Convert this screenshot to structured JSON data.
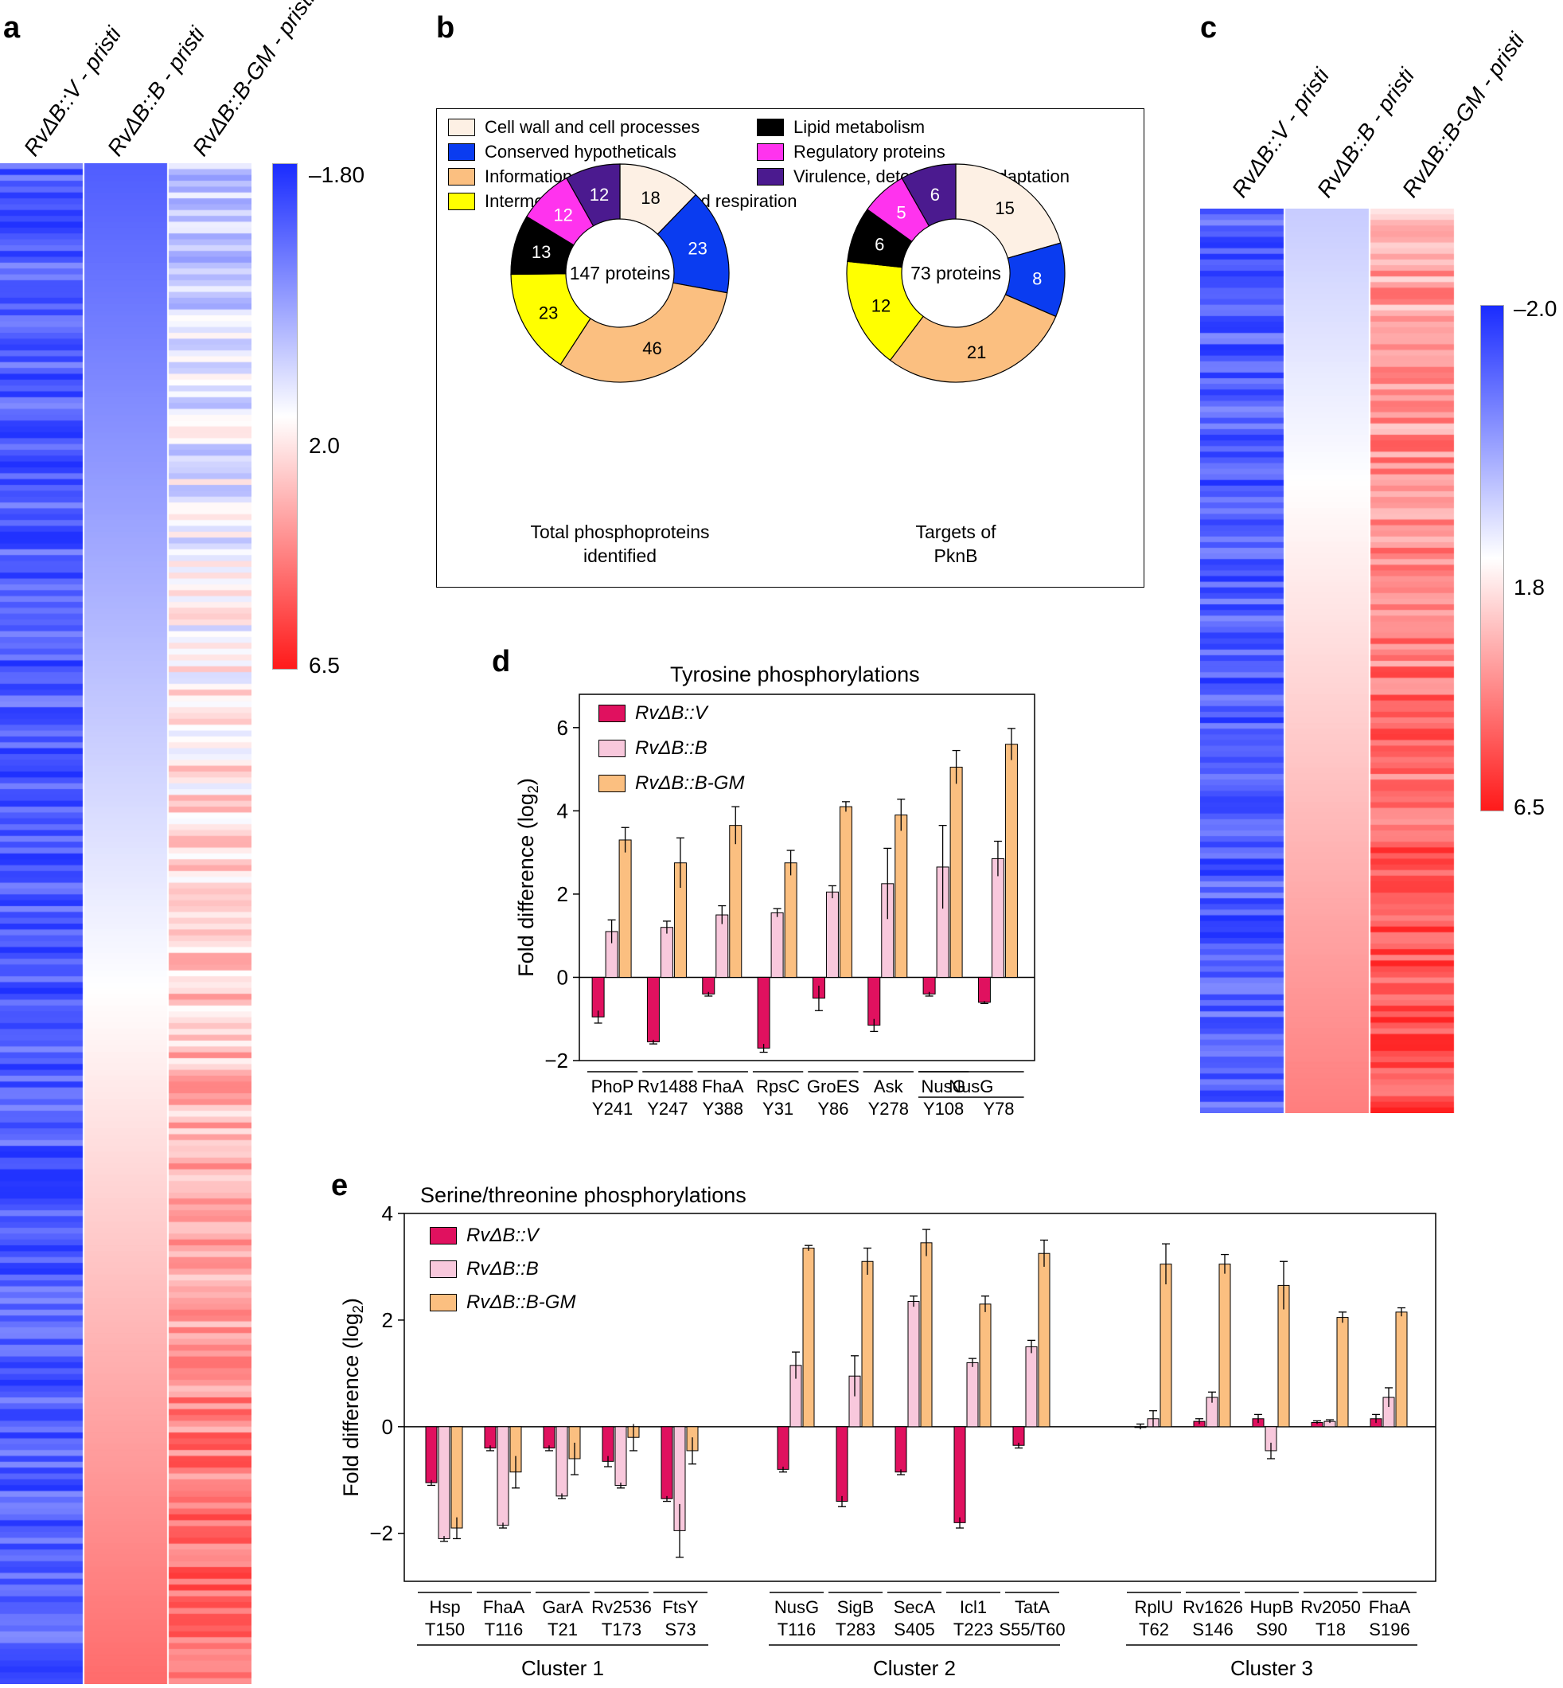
{
  "panel_labels": {
    "a": "a",
    "b": "b",
    "c": "c",
    "d": "d",
    "e": "e"
  },
  "colors": {
    "blue": "#1a2cff",
    "white": "#ffffff",
    "red": "#ff1a1a",
    "rvV": "#e0115f",
    "rvB": "#f8c8dc",
    "rvBGM": "#fbbf80",
    "cat_cell_wall": "#fdf0e4",
    "cat_conserved": "#0a3cf0",
    "cat_info": "#fbbf80",
    "cat_intermediary": "#ffff00",
    "cat_lipid": "#000000",
    "cat_regulatory": "#ff33ee",
    "cat_virulence": "#4b1a8f"
  },
  "chart_data": [
    {
      "panel": "a",
      "type": "heatmap",
      "columns": [
        "RvΔB::V - pristi",
        "RvΔB::B - pristi",
        "RvΔB::B-GM - pristi"
      ],
      "scale": {
        "labels": [
          "–1.80",
          "2.0",
          "6.5"
        ]
      }
    },
    {
      "panel": "b",
      "type": "pie",
      "legend": [
        {
          "key": "cell_wall",
          "label": "Cell wall and cell processes"
        },
        {
          "key": "conserved",
          "label": "Conserved hypotheticals"
        },
        {
          "key": "info",
          "label": "Information pathways"
        },
        {
          "key": "intermediary",
          "label": "Intermediary metabolism and respiration"
        },
        {
          "key": "lipid",
          "label": "Lipid metabolism"
        },
        {
          "key": "regulatory",
          "label": "Regulatory proteins"
        },
        {
          "key": "virulence",
          "label": "Virulence, detoxification, adaptation"
        }
      ],
      "donuts": [
        {
          "center": "147 proteins",
          "caption": [
            "Total phosphoproteins",
            "identified"
          ],
          "slices": [
            {
              "key": "cell_wall",
              "value": 18
            },
            {
              "key": "conserved",
              "value": 23
            },
            {
              "key": "info",
              "value": 46
            },
            {
              "key": "intermediary",
              "value": 23
            },
            {
              "key": "lipid",
              "value": 13
            },
            {
              "key": "regulatory",
              "value": 12
            },
            {
              "key": "virulence",
              "value": 12
            }
          ]
        },
        {
          "center": "73 proteins",
          "caption": [
            "Targets of",
            "PknB"
          ],
          "slices": [
            {
              "key": "cell_wall",
              "value": 15
            },
            {
              "key": "conserved",
              "value": 8
            },
            {
              "key": "info",
              "value": 21
            },
            {
              "key": "intermediary",
              "value": 12
            },
            {
              "key": "lipid",
              "value": 6
            },
            {
              "key": "regulatory",
              "value": 5
            },
            {
              "key": "virulence",
              "value": 6
            }
          ]
        }
      ]
    },
    {
      "panel": "c",
      "type": "heatmap",
      "columns": [
        "RvΔB::V - pristi",
        "RvΔB::B - pristi",
        "RvΔB::B-GM - pristi"
      ],
      "scale": {
        "labels": [
          "–2.0",
          "1.8",
          "6.5"
        ]
      }
    },
    {
      "panel": "d",
      "type": "bar",
      "title": "Tyrosine phosphorylations",
      "ylabel": "Fold difference (log",
      "ylabel_sub": "2",
      "ylabel_end": ")",
      "ylim": [
        -2,
        6.8
      ],
      "yticks": [
        -2,
        0,
        2,
        4,
        6
      ],
      "ytick_labels": [
        "−2",
        "0",
        "2",
        "4",
        "6"
      ],
      "series_names": [
        "RvΔB::V",
        "RvΔB::B",
        "RvΔB::B-GM"
      ],
      "categories": [
        {
          "protein": "PhoP",
          "site": "Y241"
        },
        {
          "protein": "Rv1488",
          "site": "Y247"
        },
        {
          "protein": "FhaA",
          "site": "Y388"
        },
        {
          "protein": "RpsC",
          "site": "Y31"
        },
        {
          "protein": "GroES",
          "site": "Y86"
        },
        {
          "protein": "Ask",
          "site": "Y278"
        },
        {
          "protein": "NusG",
          "site": "Y108"
        },
        {
          "protein": "",
          "site": "Y78"
        }
      ],
      "shared_bracket": {
        "label": "NusG",
        "from": 6,
        "to": 7
      },
      "series": [
        {
          "name": "RvΔB::V",
          "values": [
            -0.95,
            -1.55,
            -0.4,
            -1.7,
            -0.5,
            -1.15,
            -0.4,
            -0.6
          ],
          "errors": [
            0.15,
            0.05,
            0.05,
            0.1,
            0.3,
            0.15,
            0.05,
            0.03
          ]
        },
        {
          "name": "RvΔB::B",
          "values": [
            1.1,
            1.2,
            1.5,
            1.55,
            2.05,
            2.25,
            2.65,
            2.85
          ],
          "errors": [
            0.28,
            0.15,
            0.22,
            0.1,
            0.15,
            0.85,
            1.0,
            0.42
          ]
        },
        {
          "name": "RvΔB::B-GM",
          "values": [
            3.3,
            2.75,
            3.65,
            2.75,
            4.1,
            3.9,
            5.05,
            5.6
          ],
          "errors": [
            0.3,
            0.6,
            0.45,
            0.3,
            0.12,
            0.38,
            0.4,
            0.38
          ]
        }
      ]
    },
    {
      "panel": "e",
      "type": "bar",
      "title": "Serine/threonine phosphorylations",
      "ylabel": "Fold difference (log",
      "ylabel_sub": "2",
      "ylabel_end": ")",
      "ylim": [
        -2.9,
        4
      ],
      "yticks": [
        -2,
        0,
        2,
        4
      ],
      "ytick_labels": [
        "−2",
        "0",
        "2",
        "4"
      ],
      "series_names": [
        "RvΔB::V",
        "RvΔB::B",
        "RvΔB::B-GM"
      ],
      "clusters": [
        {
          "name": "Cluster 1",
          "categories": [
            {
              "protein": "Hsp",
              "site": "T150",
              "values": [
                -1.05,
                -2.1,
                -1.9
              ],
              "errors": [
                0.05,
                0.05,
                0.2
              ]
            },
            {
              "protein": "FhaA",
              "site": "T116",
              "values": [
                -0.4,
                -1.85,
                -0.85
              ],
              "errors": [
                0.05,
                0.05,
                0.3
              ]
            },
            {
              "protein": "GarA",
              "site": "T21",
              "values": [
                -0.4,
                -1.3,
                -0.6
              ],
              "errors": [
                0.05,
                0.05,
                0.3
              ]
            },
            {
              "protein": "Rv2536",
              "site": "T173",
              "values": [
                -0.65,
                -1.1,
                -0.2
              ],
              "errors": [
                0.1,
                0.05,
                0.25
              ]
            },
            {
              "protein": "FtsY",
              "site": "S73",
              "values": [
                -1.35,
                -1.95,
                -0.45
              ],
              "errors": [
                0.05,
                0.5,
                0.25
              ]
            }
          ]
        },
        {
          "name": "Cluster 2",
          "categories": [
            {
              "protein": "NusG",
              "site": "T116",
              "values": [
                -0.8,
                1.15,
                3.35
              ],
              "errors": [
                0.05,
                0.25,
                0.05
              ]
            },
            {
              "protein": "SigB",
              "site": "T283",
              "values": [
                -1.4,
                0.95,
                3.1
              ],
              "errors": [
                0.1,
                0.38,
                0.25
              ]
            },
            {
              "protein": "SecA",
              "site": "S405",
              "values": [
                -0.85,
                2.35,
                3.45
              ],
              "errors": [
                0.05,
                0.1,
                0.25
              ]
            },
            {
              "protein": "Icl1",
              "site": "T223",
              "values": [
                -1.8,
                1.2,
                2.3
              ],
              "errors": [
                0.1,
                0.08,
                0.15
              ]
            },
            {
              "protein": "TatA",
              "site": "S55/T60",
              "values": [
                -0.35,
                1.5,
                3.25
              ],
              "errors": [
                0.05,
                0.12,
                0.25
              ]
            }
          ]
        },
        {
          "name": "Cluster 3",
          "categories": [
            {
              "protein": "RplU",
              "site": "T62",
              "values": [
                0.0,
                0.15,
                3.05
              ],
              "errors": [
                0.05,
                0.15,
                0.38
              ]
            },
            {
              "protein": "Rv1626",
              "site": "S146",
              "values": [
                0.1,
                0.55,
                3.05
              ],
              "errors": [
                0.05,
                0.1,
                0.18
              ]
            },
            {
              "protein": "HupB",
              "site": "S90",
              "values": [
                0.15,
                -0.45,
                2.65
              ],
              "errors": [
                0.08,
                0.15,
                0.45
              ]
            },
            {
              "protein": "Rv2050",
              "site": "T18",
              "values": [
                0.08,
                0.1,
                2.05
              ],
              "errors": [
                0.03,
                0.03,
                0.1
              ]
            },
            {
              "protein": "FhaA",
              "site": "S196",
              "values": [
                0.15,
                0.55,
                2.15
              ],
              "errors": [
                0.08,
                0.18,
                0.08
              ]
            }
          ]
        }
      ]
    }
  ]
}
